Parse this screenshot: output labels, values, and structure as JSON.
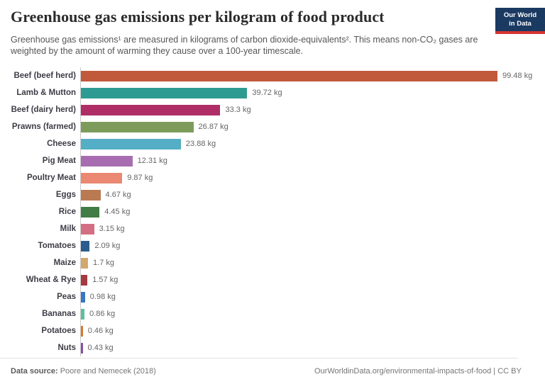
{
  "header": {
    "title": "Greenhouse gas emissions per kilogram of food product",
    "subtitle": "Greenhouse gas emissions¹ are measured in kilograms of carbon dioxide-equivalents². This means non-CO₂ gases are weighted by the amount of warming they cause over a 100-year timescale.",
    "logo": {
      "line1": "Our World",
      "line2": "in Data"
    }
  },
  "chart_data": {
    "type": "bar",
    "orientation": "horizontal",
    "title": "Greenhouse gas emissions per kilogram of food product",
    "unit": "kg CO₂-equivalents per kg",
    "xlim": [
      0,
      99.48
    ],
    "grid": false,
    "categories": [
      "Beef (beef herd)",
      "Lamb & Mutton",
      "Beef (dairy herd)",
      "Prawns (farmed)",
      "Cheese",
      "Pig Meat",
      "Poultry Meat",
      "Eggs",
      "Rice",
      "Milk",
      "Tomatoes",
      "Maize",
      "Wheat & Rye",
      "Peas",
      "Bananas",
      "Potatoes",
      "Nuts"
    ],
    "values": [
      99.48,
      39.72,
      33.3,
      26.87,
      23.88,
      12.31,
      9.87,
      4.67,
      4.45,
      3.15,
      2.09,
      1.7,
      1.57,
      0.98,
      0.86,
      0.46,
      0.43
    ],
    "value_labels": [
      "99.48 kg",
      "39.72 kg",
      "33.3 kg",
      "26.87 kg",
      "23.88 kg",
      "12.31 kg",
      "9.87 kg",
      "4.67 kg",
      "4.45 kg",
      "3.15 kg",
      "2.09 kg",
      "1.7 kg",
      "1.57 kg",
      "0.98 kg",
      "0.86 kg",
      "0.46 kg",
      "0.43 kg"
    ],
    "colors": [
      "#c05a3b",
      "#2e9b92",
      "#af2e67",
      "#7d9c5b",
      "#54aec5",
      "#a86db0",
      "#ea8871",
      "#b97a51",
      "#417d45",
      "#d46e82",
      "#2b5c8f",
      "#d2a86f",
      "#a43a42",
      "#3a76c2",
      "#5fbe9b",
      "#d97a2f",
      "#8355a7"
    ]
  },
  "footer": {
    "datasource_label": "Data source:",
    "datasource_value": " Poore and Nemecek (2018)",
    "link": "OurWorldinData.org/environmental-impacts-of-food | CC BY"
  },
  "colors": {
    "logo_background": "#1b3a62",
    "logo_stripe": "#d8352f",
    "axis_line": "#cacaca"
  }
}
